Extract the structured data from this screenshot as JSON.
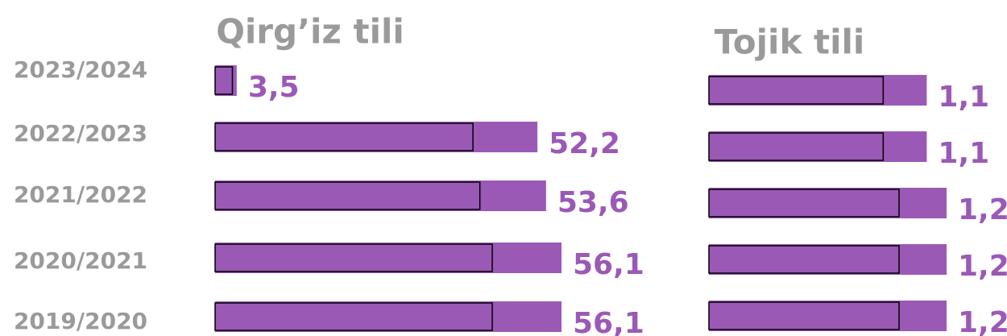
{
  "chart_data": [
    {
      "type": "bar",
      "orientation": "horizontal",
      "title": "Qirg’iz tili",
      "color": "#9b59b6",
      "categories": [
        "2023/2024",
        "2022/2023",
        "2021/2022",
        "2020/2021",
        "2019/2020"
      ],
      "values": [
        3.5,
        52.2,
        53.6,
        56.1,
        56.1
      ],
      "value_labels": [
        "3,5",
        "52,2",
        "53,6",
        "56,1",
        "56,1"
      ]
    },
    {
      "type": "bar",
      "orientation": "horizontal",
      "title": "Tojik tili",
      "color": "#9b59b6",
      "values": [
        1.1,
        1.1,
        1.2,
        1.2,
        1.2
      ],
      "value_labels": [
        "1,1",
        "1,1",
        "1,2",
        "1,2",
        "1,2"
      ]
    }
  ]
}
